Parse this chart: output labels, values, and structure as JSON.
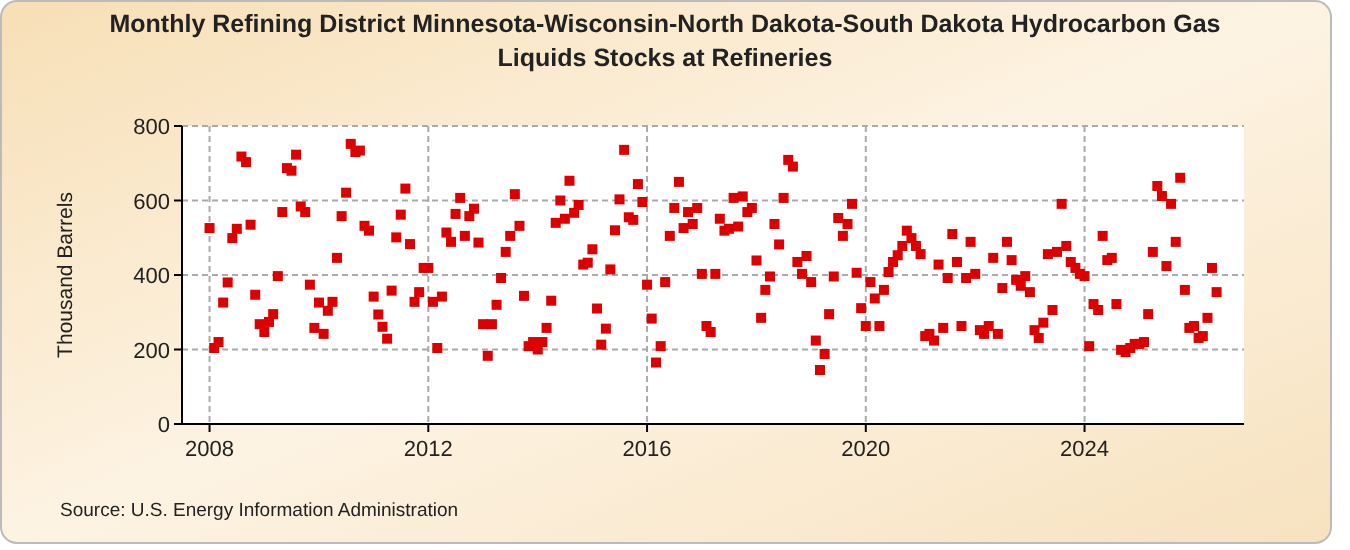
{
  "chart_data": {
    "type": "scatter",
    "title": "Monthly Refining District Minnesota-Wisconsin-North Dakota-South Dakota Hydrocarbon Gas Liquids Stocks at Refineries",
    "ylabel": "Thousand Barrels",
    "annotations": [
      "Source: U.S. Energy Information Administration"
    ],
    "x": [
      "2008-01",
      "2008-02",
      "2008-03",
      "2008-04",
      "2008-05",
      "2008-06",
      "2008-07",
      "2008-08",
      "2008-09",
      "2008-10",
      "2008-11",
      "2008-12",
      "2009-01",
      "2009-02",
      "2009-03",
      "2009-04",
      "2009-05",
      "2009-06",
      "2009-07",
      "2009-08",
      "2009-09",
      "2009-10",
      "2009-11",
      "2009-12",
      "2010-01",
      "2010-02",
      "2010-03",
      "2010-04",
      "2010-05",
      "2010-06",
      "2010-07",
      "2010-08",
      "2010-09",
      "2010-10",
      "2010-11",
      "2010-12",
      "2011-01",
      "2011-02",
      "2011-03",
      "2011-04",
      "2011-05",
      "2011-06",
      "2011-07",
      "2011-08",
      "2011-09",
      "2011-10",
      "2011-11",
      "2011-12",
      "2012-01",
      "2012-02",
      "2012-03",
      "2012-04",
      "2012-05",
      "2012-06",
      "2012-07",
      "2012-08",
      "2012-09",
      "2012-10",
      "2012-11",
      "2012-12",
      "2013-01",
      "2013-02",
      "2013-03",
      "2013-04",
      "2013-05",
      "2013-06",
      "2013-07",
      "2013-08",
      "2013-09",
      "2013-10",
      "2013-11",
      "2013-12",
      "2014-01",
      "2014-02",
      "2014-03",
      "2014-04",
      "2014-05",
      "2014-06",
      "2014-07",
      "2014-08",
      "2014-09",
      "2014-10",
      "2014-11",
      "2014-12",
      "2015-01",
      "2015-02",
      "2015-03",
      "2015-04",
      "2015-05",
      "2015-06",
      "2015-07",
      "2015-08",
      "2015-09",
      "2015-10",
      "2015-11",
      "2015-12",
      "2016-01",
      "2016-02",
      "2016-03",
      "2016-04",
      "2016-05",
      "2016-06",
      "2016-07",
      "2016-08",
      "2016-09",
      "2016-10",
      "2016-11",
      "2016-12",
      "2017-01",
      "2017-02",
      "2017-03",
      "2017-04",
      "2017-05",
      "2017-06",
      "2017-07",
      "2017-08",
      "2017-09",
      "2017-10",
      "2017-11",
      "2017-12",
      "2018-01",
      "2018-02",
      "2018-03",
      "2018-04",
      "2018-05",
      "2018-06",
      "2018-07",
      "2018-08",
      "2018-09",
      "2018-10",
      "2018-11",
      "2018-12",
      "2019-01",
      "2019-02",
      "2019-03",
      "2019-04",
      "2019-05",
      "2019-06",
      "2019-07",
      "2019-08",
      "2019-09",
      "2019-10",
      "2019-11",
      "2019-12",
      "2020-01",
      "2020-02",
      "2020-03",
      "2020-04",
      "2020-05",
      "2020-06",
      "2020-07",
      "2020-08",
      "2020-09",
      "2020-10",
      "2020-11",
      "2020-12",
      "2021-01",
      "2021-02",
      "2021-03",
      "2021-04",
      "2021-05",
      "2021-06",
      "2021-07",
      "2021-08",
      "2021-09",
      "2021-10",
      "2021-11",
      "2021-12",
      "2022-01",
      "2022-02",
      "2022-03",
      "2022-04",
      "2022-05",
      "2022-06",
      "2022-07",
      "2022-08",
      "2022-09",
      "2022-10",
      "2022-11",
      "2022-12",
      "2023-01",
      "2023-02",
      "2023-03",
      "2023-04",
      "2023-05",
      "2023-06",
      "2023-07",
      "2023-08",
      "2023-09",
      "2023-10",
      "2023-11",
      "2023-12",
      "2024-01",
      "2024-02",
      "2024-03",
      "2024-04",
      "2024-05",
      "2024-06",
      "2024-07",
      "2024-08",
      "2024-09",
      "2024-10",
      "2024-11",
      "2024-12",
      "2025-01",
      "2025-02",
      "2025-03",
      "2025-04",
      "2025-05",
      "2025-06",
      "2025-07",
      "2025-08",
      "2025-09",
      "2025-10",
      "2025-11",
      "2025-12",
      "2026-01",
      "2026-02",
      "2026-03",
      "2026-04",
      "2026-05",
      "2026-06"
    ],
    "values": [
      526,
      204,
      220,
      326,
      380,
      499,
      524,
      718,
      703,
      535,
      347,
      268,
      247,
      274,
      295,
      397,
      569,
      687,
      680,
      723,
      584,
      569,
      374,
      258,
      326,
      242,
      304,
      328,
      446,
      558,
      621,
      752,
      730,
      734,
      532,
      519,
      342,
      294,
      261,
      229,
      358,
      501,
      562,
      632,
      483,
      328,
      354,
      419,
      419,
      328,
      204,
      342,
      514,
      489,
      564,
      607,
      505,
      558,
      578,
      487,
      268,
      183,
      268,
      320,
      392,
      462,
      505,
      617,
      532,
      344,
      209,
      220,
      200,
      220,
      258,
      331,
      540,
      600,
      551,
      653,
      567,
      588,
      428,
      433,
      469,
      310,
      213,
      256,
      415,
      520,
      603,
      736,
      555,
      548,
      644,
      596,
      374,
      283,
      165,
      209,
      381,
      505,
      580,
      650,
      526,
      569,
      537,
      580,
      403,
      263,
      247,
      403,
      551,
      519,
      524,
      607,
      530,
      611,
      569,
      580,
      439,
      285,
      360,
      396,
      537,
      482,
      607,
      709,
      691,
      435,
      403,
      451,
      381,
      224,
      145,
      188,
      295,
      396,
      553,
      505,
      537,
      591,
      406,
      311,
      263,
      381,
      337,
      263,
      360,
      408,
      435,
      453,
      478,
      519,
      499,
      478,
      456,
      236,
      242,
      224,
      428,
      258,
      392,
      510,
      435,
      263,
      392,
      489,
      403,
      252,
      242,
      263,
      446,
      242,
      365,
      489,
      440,
      387,
      371,
      397,
      354,
      252,
      231,
      272,
      456,
      306,
      462,
      591,
      478,
      435,
      419,
      403,
      397,
      209,
      322,
      306,
      505,
      440,
      446,
      322,
      199,
      193,
      204,
      215,
      215,
      220,
      295,
      462,
      639,
      612,
      424,
      591,
      489,
      661,
      360,
      258,
      263,
      231,
      236,
      285,
      419,
      354
    ],
    "color": "#dd0000",
    "marker": "square",
    "grid": true,
    "xlim": [
      "2007-07",
      "2026-12"
    ],
    "xticks": [
      "2008",
      "2012",
      "2016",
      "2020",
      "2024"
    ],
    "ylim": [
      0,
      800
    ],
    "yticks": [
      0,
      200,
      400,
      600,
      800
    ]
  }
}
